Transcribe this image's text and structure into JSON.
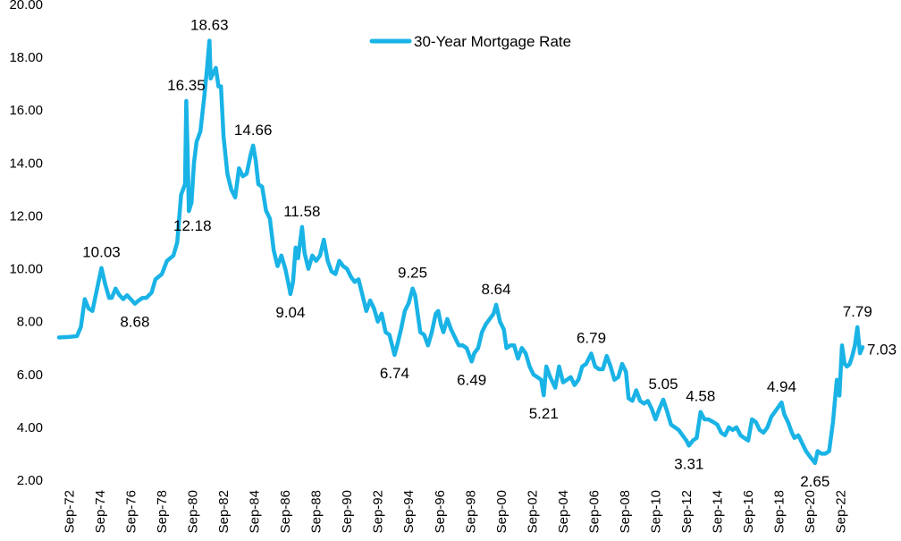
{
  "chart_data": {
    "type": "line",
    "title": "",
    "xlabel": "",
    "ylabel": "",
    "ylim": [
      2.0,
      20.0
    ],
    "y_ticks": [
      "2.00",
      "4.00",
      "6.00",
      "8.00",
      "10.00",
      "12.00",
      "14.00",
      "16.00",
      "18.00",
      "20.00"
    ],
    "x_range": [
      "1972-01",
      "2024-02"
    ],
    "x_tick_labels": [
      {
        "date": "1972-09",
        "label": "Sep-72"
      },
      {
        "date": "1974-09",
        "label": "Sep-74"
      },
      {
        "date": "1976-09",
        "label": "Sep-76"
      },
      {
        "date": "1978-09",
        "label": "Sep-78"
      },
      {
        "date": "1980-09",
        "label": "Sep-80"
      },
      {
        "date": "1982-09",
        "label": "Sep-82"
      },
      {
        "date": "1984-09",
        "label": "Sep-84"
      },
      {
        "date": "1986-09",
        "label": "Sep-86"
      },
      {
        "date": "1988-09",
        "label": "Sep-88"
      },
      {
        "date": "1990-09",
        "label": "Sep-90"
      },
      {
        "date": "1992-09",
        "label": "Sep-92"
      },
      {
        "date": "1994-09",
        "label": "Sep-94"
      },
      {
        "date": "1996-09",
        "label": "Sep-96"
      },
      {
        "date": "1998-09",
        "label": "Sep-98"
      },
      {
        "date": "2000-09",
        "label": "Sep-00"
      },
      {
        "date": "2002-09",
        "label": "Sep-02"
      },
      {
        "date": "2004-09",
        "label": "Sep-04"
      },
      {
        "date": "2006-09",
        "label": "Sep-06"
      },
      {
        "date": "2008-09",
        "label": "Sep-08"
      },
      {
        "date": "2010-09",
        "label": "Sep-10"
      },
      {
        "date": "2012-09",
        "label": "Sep-12"
      },
      {
        "date": "2014-09",
        "label": "Sep-14"
      },
      {
        "date": "2016-09",
        "label": "Sep-16"
      },
      {
        "date": "2018-09",
        "label": "Sep-18"
      },
      {
        "date": "2020-09",
        "label": "Sep-20"
      },
      {
        "date": "2022-09",
        "label": "Sep-22"
      }
    ],
    "grid": false,
    "legend_position": "top-center",
    "series": [
      {
        "name": "30-Year Mortgage Rate",
        "color": "#1ab3e6",
        "points": [
          [
            "1972-01",
            7.4
          ],
          [
            "1972-09",
            7.42
          ],
          [
            "1973-03",
            7.45
          ],
          [
            "1973-06",
            7.8
          ],
          [
            "1973-09",
            8.85
          ],
          [
            "1973-12",
            8.5
          ],
          [
            "1974-03",
            8.4
          ],
          [
            "1974-06",
            9.1
          ],
          [
            "1974-10",
            10.03
          ],
          [
            "1975-01",
            9.4
          ],
          [
            "1975-04",
            8.9
          ],
          [
            "1975-06",
            8.9
          ],
          [
            "1975-09",
            9.25
          ],
          [
            "1975-12",
            9.0
          ],
          [
            "1976-03",
            8.85
          ],
          [
            "1976-06",
            9.0
          ],
          [
            "1976-12",
            8.68
          ],
          [
            "1977-03",
            8.8
          ],
          [
            "1977-06",
            8.9
          ],
          [
            "1977-09",
            8.9
          ],
          [
            "1978-01",
            9.1
          ],
          [
            "1978-04",
            9.6
          ],
          [
            "1978-09",
            9.8
          ],
          [
            "1979-01",
            10.3
          ],
          [
            "1979-06",
            10.5
          ],
          [
            "1979-09",
            11.0
          ],
          [
            "1979-12",
            12.8
          ],
          [
            "1980-03",
            13.2
          ],
          [
            "1980-04",
            16.35
          ],
          [
            "1980-05",
            14.5
          ],
          [
            "1980-06",
            12.18
          ],
          [
            "1980-08",
            12.5
          ],
          [
            "1980-10",
            14.0
          ],
          [
            "1980-12",
            14.8
          ],
          [
            "1981-03",
            15.2
          ],
          [
            "1981-06",
            16.5
          ],
          [
            "1981-08",
            17.5
          ],
          [
            "1981-10",
            18.63
          ],
          [
            "1981-11",
            17.2
          ],
          [
            "1982-01",
            17.4
          ],
          [
            "1982-03",
            17.6
          ],
          [
            "1982-05",
            16.9
          ],
          [
            "1982-07",
            16.9
          ],
          [
            "1982-09",
            15.0
          ],
          [
            "1982-12",
            13.6
          ],
          [
            "1983-03",
            13.0
          ],
          [
            "1983-06",
            12.7
          ],
          [
            "1983-09",
            13.8
          ],
          [
            "1983-12",
            13.5
          ],
          [
            "1984-03",
            13.6
          ],
          [
            "1984-06",
            14.3
          ],
          [
            "1984-08",
            14.66
          ],
          [
            "1984-10",
            14.1
          ],
          [
            "1984-12",
            13.2
          ],
          [
            "1985-03",
            13.1
          ],
          [
            "1985-06",
            12.2
          ],
          [
            "1985-09",
            11.9
          ],
          [
            "1985-12",
            10.7
          ],
          [
            "1986-03",
            10.1
          ],
          [
            "1986-06",
            10.5
          ],
          [
            "1986-09",
            10.0
          ],
          [
            "1986-12",
            9.3
          ],
          [
            "1987-01",
            9.04
          ],
          [
            "1987-03",
            9.5
          ],
          [
            "1987-05",
            10.8
          ],
          [
            "1987-07",
            10.4
          ],
          [
            "1987-10",
            11.58
          ],
          [
            "1987-12",
            10.6
          ],
          [
            "1988-03",
            10.0
          ],
          [
            "1988-06",
            10.5
          ],
          [
            "1988-09",
            10.3
          ],
          [
            "1988-12",
            10.5
          ],
          [
            "1989-03",
            11.1
          ],
          [
            "1989-06",
            10.3
          ],
          [
            "1989-09",
            9.9
          ],
          [
            "1989-12",
            9.8
          ],
          [
            "1990-03",
            10.3
          ],
          [
            "1990-06",
            10.1
          ],
          [
            "1990-09",
            10.0
          ],
          [
            "1990-12",
            9.7
          ],
          [
            "1991-03",
            9.5
          ],
          [
            "1991-06",
            9.6
          ],
          [
            "1991-09",
            9.0
          ],
          [
            "1991-12",
            8.4
          ],
          [
            "1992-03",
            8.8
          ],
          [
            "1992-06",
            8.5
          ],
          [
            "1992-09",
            8.0
          ],
          [
            "1992-12",
            8.3
          ],
          [
            "1993-03",
            7.6
          ],
          [
            "1993-06",
            7.5
          ],
          [
            "1993-10",
            6.74
          ],
          [
            "1993-12",
            7.1
          ],
          [
            "1994-03",
            7.7
          ],
          [
            "1994-06",
            8.4
          ],
          [
            "1994-09",
            8.7
          ],
          [
            "1994-12",
            9.25
          ],
          [
            "1995-02",
            9.0
          ],
          [
            "1995-04",
            8.3
          ],
          [
            "1995-06",
            7.6
          ],
          [
            "1995-09",
            7.5
          ],
          [
            "1995-12",
            7.1
          ],
          [
            "1996-03",
            7.6
          ],
          [
            "1996-06",
            8.3
          ],
          [
            "1996-08",
            8.4
          ],
          [
            "1996-10",
            7.9
          ],
          [
            "1996-12",
            7.6
          ],
          [
            "1997-03",
            8.1
          ],
          [
            "1997-06",
            7.7
          ],
          [
            "1997-09",
            7.4
          ],
          [
            "1997-12",
            7.1
          ],
          [
            "1998-03",
            7.1
          ],
          [
            "1998-06",
            7.0
          ],
          [
            "1998-10",
            6.49
          ],
          [
            "1998-12",
            6.8
          ],
          [
            "1999-03",
            7.0
          ],
          [
            "1999-06",
            7.6
          ],
          [
            "1999-09",
            7.9
          ],
          [
            "1999-12",
            8.1
          ],
          [
            "2000-03",
            8.3
          ],
          [
            "2000-05",
            8.64
          ],
          [
            "2000-08",
            8.0
          ],
          [
            "2000-11",
            7.7
          ],
          [
            "2001-01",
            7.0
          ],
          [
            "2001-04",
            7.1
          ],
          [
            "2001-07",
            7.1
          ],
          [
            "2001-10",
            6.6
          ],
          [
            "2002-01",
            7.0
          ],
          [
            "2002-04",
            6.8
          ],
          [
            "2002-07",
            6.3
          ],
          [
            "2002-10",
            6.0
          ],
          [
            "2003-01",
            5.9
          ],
          [
            "2003-04",
            5.8
          ],
          [
            "2003-06",
            5.21
          ],
          [
            "2003-08",
            6.3
          ],
          [
            "2003-11",
            5.9
          ],
          [
            "2004-03",
            5.5
          ],
          [
            "2004-06",
            6.3
          ],
          [
            "2004-09",
            5.7
          ],
          [
            "2004-12",
            5.8
          ],
          [
            "2005-03",
            5.9
          ],
          [
            "2005-06",
            5.6
          ],
          [
            "2005-09",
            5.8
          ],
          [
            "2005-12",
            6.3
          ],
          [
            "2006-03",
            6.4
          ],
          [
            "2006-07",
            6.79
          ],
          [
            "2006-10",
            6.3
          ],
          [
            "2007-01",
            6.2
          ],
          [
            "2007-04",
            6.2
          ],
          [
            "2007-07",
            6.7
          ],
          [
            "2007-10",
            6.3
          ],
          [
            "2008-01",
            5.8
          ],
          [
            "2008-04",
            5.9
          ],
          [
            "2008-07",
            6.4
          ],
          [
            "2008-10",
            6.1
          ],
          [
            "2008-12",
            5.1
          ],
          [
            "2009-03",
            5.0
          ],
          [
            "2009-06",
            5.4
          ],
          [
            "2009-09",
            5.0
          ],
          [
            "2009-12",
            4.9
          ],
          [
            "2010-03",
            5.0
          ],
          [
            "2010-06",
            4.7
          ],
          [
            "2010-09",
            4.3
          ],
          [
            "2010-12",
            4.7
          ],
          [
            "2011-03",
            5.05
          ],
          [
            "2011-06",
            4.6
          ],
          [
            "2011-09",
            4.1
          ],
          [
            "2011-12",
            4.0
          ],
          [
            "2012-03",
            3.9
          ],
          [
            "2012-06",
            3.7
          ],
          [
            "2012-09",
            3.5
          ],
          [
            "2012-11",
            3.31
          ],
          [
            "2013-02",
            3.5
          ],
          [
            "2013-05",
            3.6
          ],
          [
            "2013-08",
            4.58
          ],
          [
            "2013-11",
            4.3
          ],
          [
            "2014-02",
            4.3
          ],
          [
            "2014-06",
            4.2
          ],
          [
            "2014-09",
            4.1
          ],
          [
            "2014-12",
            3.8
          ],
          [
            "2015-03",
            3.7
          ],
          [
            "2015-06",
            4.0
          ],
          [
            "2015-09",
            3.9
          ],
          [
            "2015-12",
            4.0
          ],
          [
            "2016-03",
            3.7
          ],
          [
            "2016-06",
            3.6
          ],
          [
            "2016-09",
            3.5
          ],
          [
            "2016-12",
            4.3
          ],
          [
            "2017-03",
            4.2
          ],
          [
            "2017-06",
            3.9
          ],
          [
            "2017-09",
            3.8
          ],
          [
            "2017-12",
            4.0
          ],
          [
            "2018-03",
            4.4
          ],
          [
            "2018-06",
            4.6
          ],
          [
            "2018-11",
            4.94
          ],
          [
            "2019-01",
            4.5
          ],
          [
            "2019-04",
            4.2
          ],
          [
            "2019-07",
            3.8
          ],
          [
            "2019-09",
            3.6
          ],
          [
            "2019-12",
            3.7
          ],
          [
            "2020-03",
            3.4
          ],
          [
            "2020-06",
            3.1
          ],
          [
            "2020-09",
            2.9
          ],
          [
            "2021-01",
            2.65
          ],
          [
            "2021-03",
            3.1
          ],
          [
            "2021-06",
            3.0
          ],
          [
            "2021-09",
            3.0
          ],
          [
            "2021-12",
            3.1
          ],
          [
            "2022-03",
            4.2
          ],
          [
            "2022-06",
            5.8
          ],
          [
            "2022-08",
            5.2
          ],
          [
            "2022-10",
            7.1
          ],
          [
            "2022-12",
            6.4
          ],
          [
            "2023-02",
            6.3
          ],
          [
            "2023-04",
            6.4
          ],
          [
            "2023-06",
            6.7
          ],
          [
            "2023-08",
            7.1
          ],
          [
            "2023-10",
            7.79
          ],
          [
            "2023-12",
            6.8
          ],
          [
            "2024-02",
            7.03
          ]
        ]
      }
    ],
    "data_labels": [
      {
        "date": "1974-10",
        "value": 10.03,
        "text": "10.03"
      },
      {
        "date": "1976-12",
        "value": 8.68,
        "text": "8.68"
      },
      {
        "date": "1980-04",
        "value": 16.35,
        "text": "16.35"
      },
      {
        "date": "1980-06",
        "value": 12.18,
        "text": "12.18"
      },
      {
        "date": "1981-10",
        "value": 18.63,
        "text": "18.63"
      },
      {
        "date": "1984-08",
        "value": 14.66,
        "text": "14.66"
      },
      {
        "date": "1987-01",
        "value": 9.04,
        "text": "9.04"
      },
      {
        "date": "1987-10",
        "value": 11.58,
        "text": "11.58"
      },
      {
        "date": "1993-10",
        "value": 6.74,
        "text": "6.74"
      },
      {
        "date": "1994-12",
        "value": 9.25,
        "text": "9.25"
      },
      {
        "date": "1998-10",
        "value": 6.49,
        "text": "6.49"
      },
      {
        "date": "2000-05",
        "value": 8.64,
        "text": "8.64"
      },
      {
        "date": "2003-06",
        "value": 5.21,
        "text": "5.21"
      },
      {
        "date": "2006-07",
        "value": 6.79,
        "text": "6.79"
      },
      {
        "date": "2011-03",
        "value": 5.05,
        "text": "5.05"
      },
      {
        "date": "2012-11",
        "value": 3.31,
        "text": "3.31"
      },
      {
        "date": "2013-08",
        "value": 4.58,
        "text": "4.58"
      },
      {
        "date": "2018-11",
        "value": 4.94,
        "text": "4.94"
      },
      {
        "date": "2021-01",
        "value": 2.65,
        "text": "2.65"
      },
      {
        "date": "2023-10",
        "value": 7.79,
        "text": "7.79"
      },
      {
        "date": "2024-02",
        "value": 7.03,
        "text": "7.03"
      }
    ]
  }
}
